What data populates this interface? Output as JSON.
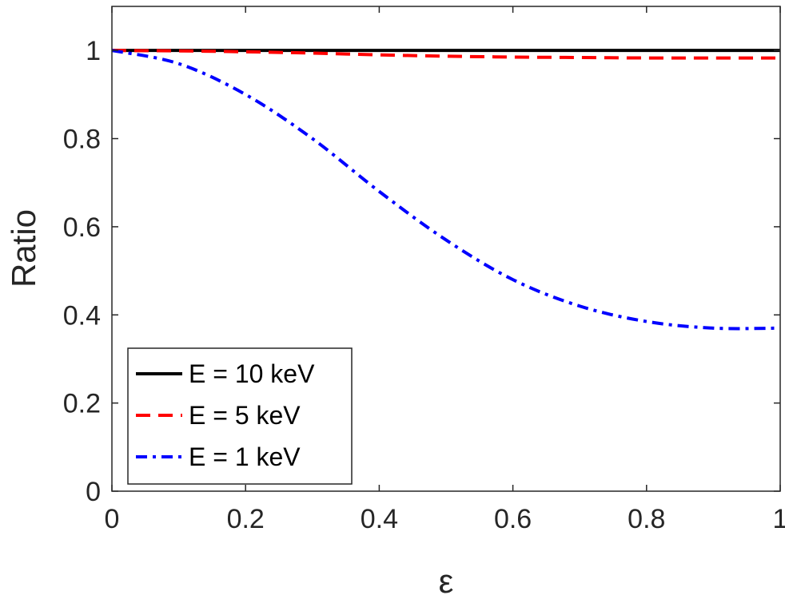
{
  "chart_data": {
    "type": "line",
    "title": "",
    "xlabel": "ε",
    "ylabel": "Ratio",
    "xlim": [
      0,
      1
    ],
    "ylim": [
      0,
      1.1
    ],
    "xticks": [
      "0",
      "0.2",
      "0.4",
      "0.6",
      "0.8",
      "1"
    ],
    "yticks": [
      "0",
      "0.2",
      "0.4",
      "0.6",
      "0.8",
      "1"
    ],
    "grid": false,
    "legend_position": "bottom-left",
    "x": [
      0,
      0.1,
      0.2,
      0.3,
      0.4,
      0.5,
      0.6,
      0.7,
      0.8,
      0.9,
      1.0
    ],
    "series": [
      {
        "name": "E = 10 keV",
        "color": "#000000",
        "style": "solid",
        "values": [
          1.0,
          1.0,
          1.0,
          1.0,
          1.0,
          1.0,
          1.0,
          1.0,
          1.0,
          1.0,
          1.0
        ]
      },
      {
        "name": "E = 5 keV",
        "color": "#ff0000",
        "style": "dashed",
        "values": [
          1.0,
          0.999,
          0.997,
          0.994,
          0.99,
          0.987,
          0.985,
          0.984,
          0.983,
          0.983,
          0.983
        ]
      },
      {
        "name": "E = 1 keV",
        "color": "#0000ff",
        "style": "dashdot",
        "values": [
          1.0,
          0.97,
          0.9,
          0.8,
          0.68,
          0.57,
          0.48,
          0.42,
          0.385,
          0.37,
          0.37
        ]
      }
    ]
  }
}
